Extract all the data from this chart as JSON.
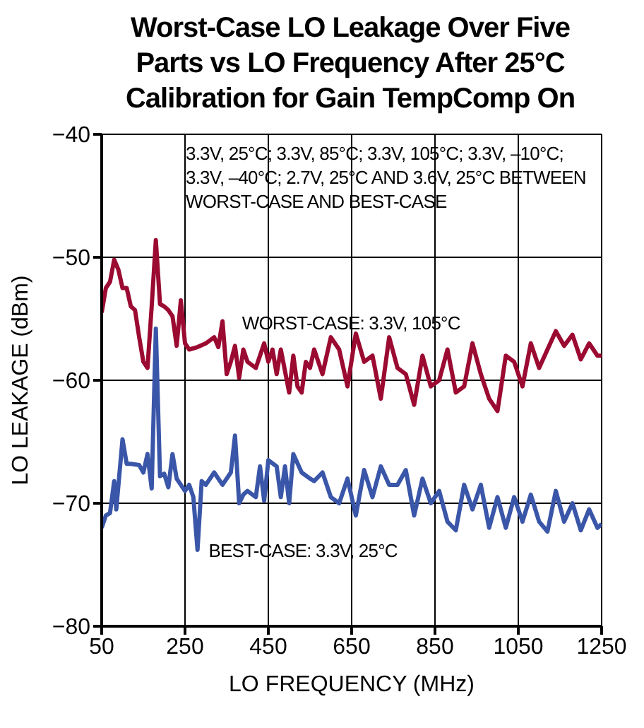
{
  "chart_data": {
    "type": "line",
    "title": "Worst-Case LO Leakage Over Five Parts vs LO Frequency After 25°C Calibration for Gain TempComp On",
    "xlabel": "LO FREQUENCY (MHz)",
    "ylabel": "LO LEAKAGE (dBm)",
    "xlim": [
      50,
      1250
    ],
    "xticks": [
      50,
      250,
      450,
      650,
      850,
      1050,
      1250
    ],
    "ylim": [
      -80,
      -40
    ],
    "yticks": [
      -80,
      -70,
      -60,
      -50,
      -40
    ],
    "grid": true,
    "marker": "none",
    "line_style": "solid",
    "annotations": [
      "3.3V, 25°C; 3.3V, 85°C; 3.3V, 105°C; 3.3V, –10°C; 3.3V, –40°C; 2.7V, 25°C AND 3.6V, 25°C BETWEEN WORST-CASE AND BEST-CASE",
      "WORST-CASE: 3.3V, 105°C",
      "BEST-CASE: 3.3V, 25°C"
    ],
    "series": [
      {
        "color": "#9b0a31",
        "x": [
          50,
          60,
          70,
          80,
          90,
          100,
          110,
          120,
          130,
          140,
          150,
          160,
          170,
          180,
          190,
          200,
          210,
          220,
          230,
          240,
          250,
          260,
          280,
          300,
          320,
          330,
          340,
          350,
          360,
          370,
          380,
          390,
          400,
          420,
          440,
          450,
          460,
          470,
          480,
          500,
          510,
          520,
          530,
          540,
          550,
          560,
          580,
          600,
          620,
          640,
          660,
          680,
          700,
          720,
          740,
          760,
          780,
          800,
          820,
          840,
          860,
          880,
          900,
          920,
          940,
          960,
          980,
          1000,
          1020,
          1040,
          1060,
          1080,
          1100,
          1120,
          1140,
          1160,
          1180,
          1200,
          1220,
          1240,
          1250
        ],
        "values": [
          -54.5,
          -52.5,
          -52,
          -50.2,
          -51,
          -52.5,
          -52.5,
          -54,
          -54.3,
          -56.5,
          -58.5,
          -59,
          -54,
          -48.6,
          -53.8,
          -54,
          -54.3,
          -54.8,
          -57.2,
          -53.5,
          -57,
          -57.5,
          -57.3,
          -57,
          -56.5,
          -57.3,
          -55.2,
          -59.5,
          -58.5,
          -57.2,
          -59.8,
          -57.5,
          -58.5,
          -59,
          -57,
          -58.5,
          -57.5,
          -59.5,
          -57.5,
          -61,
          -58,
          -60.5,
          -61,
          -58.5,
          -59,
          -57.5,
          -59.5,
          -56.5,
          -57.5,
          -60.5,
          -56.2,
          -58.5,
          -58,
          -61.5,
          -56.5,
          -59,
          -59.5,
          -62,
          -58,
          -60.5,
          -60,
          -57.5,
          -61,
          -60.5,
          -57,
          -59.5,
          -61.5,
          -62.5,
          -58,
          -58.5,
          -60.5,
          -57,
          -59,
          -57.5,
          -56,
          -57.2,
          -56.3,
          -58.3,
          -57,
          -58,
          -58
        ]
      },
      {
        "color": "#3a56a8",
        "x": [
          50,
          60,
          70,
          80,
          85,
          100,
          110,
          120,
          140,
          150,
          160,
          170,
          180,
          190,
          200,
          210,
          220,
          230,
          250,
          260,
          270,
          280,
          290,
          300,
          320,
          340,
          360,
          370,
          380,
          390,
          400,
          420,
          430,
          440,
          450,
          470,
          480,
          490,
          500,
          510,
          530,
          550,
          560,
          580,
          600,
          620,
          640,
          660,
          680,
          700,
          720,
          740,
          760,
          780,
          800,
          820,
          840,
          860,
          880,
          900,
          920,
          940,
          960,
          980,
          1000,
          1020,
          1040,
          1060,
          1080,
          1100,
          1120,
          1140,
          1160,
          1180,
          1200,
          1220,
          1240,
          1250
        ],
        "values": [
          -72,
          -71,
          -70.8,
          -68.2,
          -70.5,
          -64.8,
          -66.8,
          -66.8,
          -66.9,
          -67.5,
          -66,
          -68.8,
          -55.8,
          -67.8,
          -67.6,
          -68.7,
          -66,
          -68,
          -69,
          -68.5,
          -69.5,
          -73.8,
          -68.2,
          -68.5,
          -67.5,
          -68.5,
          -67.5,
          -64.5,
          -70,
          -69.3,
          -69,
          -69.5,
          -67,
          -69.8,
          -66.5,
          -67,
          -69.5,
          -67,
          -70,
          -66,
          -67.5,
          -68,
          -68.2,
          -67.5,
          -69.5,
          -70,
          -68,
          -71,
          -67.3,
          -69.5,
          -67,
          -68.5,
          -68.5,
          -67.3,
          -71,
          -68,
          -70,
          -69,
          -71.5,
          -72.2,
          -68.5,
          -70.5,
          -68.5,
          -72,
          -69.5,
          -72,
          -69.5,
          -71.5,
          -69.3,
          -71.5,
          -72.3,
          -69,
          -71.5,
          -70,
          -72.2,
          -70.5,
          -72,
          -71.7
        ]
      }
    ]
  }
}
